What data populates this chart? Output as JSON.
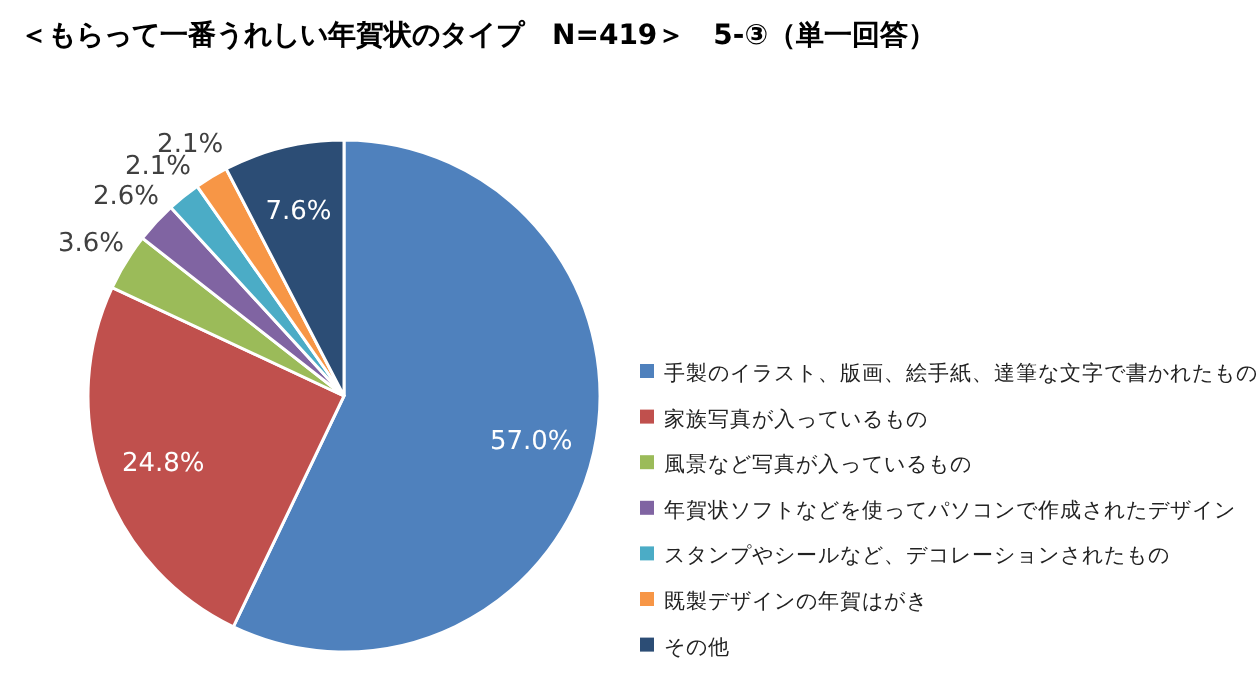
{
  "chart_data": {
    "type": "pie",
    "title": "＜もらって一番うれしい年賀状のタイプ　N=419＞　5-③（単一回答）",
    "categories": [
      "手製のイラスト、版画、絵手紙、達筆な文字で書かれたもの",
      "家族写真が入っているもの",
      "風景など写真が入っているもの",
      "年賀状ソフトなどを使ってパソコンで作成されたデザイン",
      "スタンプやシールなど、デコレーションされたもの",
      "既製デザインの年賀はがき",
      "その他"
    ],
    "values": [
      57.0,
      24.8,
      3.6,
      2.6,
      2.1,
      2.1,
      7.6
    ],
    "value_labels": [
      "57.0%",
      "24.8%",
      "3.6%",
      "2.6%",
      "2.1%",
      "2.1%",
      "7.6%"
    ],
    "colors": [
      "#4f81bd",
      "#c0504d",
      "#9bbb59",
      "#8064a2",
      "#4bacc6",
      "#f79646",
      "#2c4d75"
    ],
    "legend": "right"
  }
}
